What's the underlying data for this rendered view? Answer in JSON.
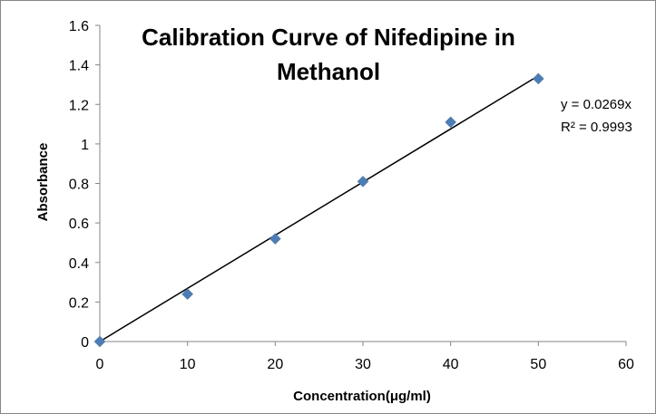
{
  "chart_data": {
    "type": "scatter",
    "title_lines": [
      "Calibration Curve  of Nifedipine in",
      "Methanol"
    ],
    "xlabel": "Concentration(μg/ml)",
    "ylabel": "Absorbance",
    "xlim": [
      0,
      60
    ],
    "ylim": [
      0,
      1.6
    ],
    "x_ticks": [
      "0",
      "10",
      "20",
      "30",
      "40",
      "50",
      "60"
    ],
    "y_ticks": [
      "0",
      "0.2",
      "0.4",
      "0.6",
      "0.8",
      "1",
      "1.2",
      "1.4",
      "1.6"
    ],
    "grid": false,
    "series": [
      {
        "marker": "diamond",
        "color": "#4a7ebb",
        "x": [
          0,
          10,
          20,
          30,
          40,
          50
        ],
        "y": [
          0.0,
          0.24,
          0.52,
          0.81,
          1.11,
          1.33
        ]
      }
    ],
    "trendline": {
      "type": "linear",
      "slope": 0.0269,
      "intercept": 0,
      "x_range": [
        0,
        50
      ],
      "color": "#000000",
      "equation": "y = 0.0269x",
      "r_squared": "R² = 0.9993"
    }
  }
}
